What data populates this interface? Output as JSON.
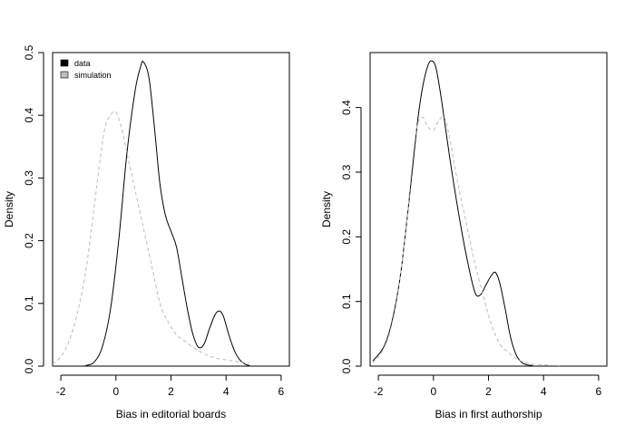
{
  "chart_data": [
    {
      "type": "line",
      "title": "",
      "xlabel": "Bias in editorial boards",
      "ylabel": "Density",
      "xlim": [
        -2.3,
        6.3
      ],
      "ylim": [
        0,
        0.5
      ],
      "xticks": [
        "-2",
        "0",
        "2",
        "4",
        "6"
      ],
      "yticks": [
        "0.0",
        "0.1",
        "0.2",
        "0.3",
        "0.4",
        "0.5"
      ],
      "legend": {
        "position": "top-left",
        "entries": [
          "data",
          "simulation"
        ]
      },
      "series": [
        {
          "name": "data",
          "style": "solid",
          "color": "#000000",
          "x": [
            -1.1,
            -0.8,
            -0.5,
            -0.2,
            0.1,
            0.4,
            0.7,
            0.9,
            1.0,
            1.2,
            1.4,
            1.6,
            1.8,
            2.0,
            2.2,
            2.4,
            2.6,
            2.8,
            3.0,
            3.2,
            3.4,
            3.6,
            3.75,
            3.9,
            4.1,
            4.3,
            4.5,
            4.7,
            4.85
          ],
          "y": [
            0.001,
            0.006,
            0.03,
            0.09,
            0.2,
            0.34,
            0.44,
            0.478,
            0.485,
            0.46,
            0.38,
            0.29,
            0.24,
            0.215,
            0.19,
            0.14,
            0.09,
            0.05,
            0.03,
            0.035,
            0.06,
            0.082,
            0.088,
            0.08,
            0.05,
            0.025,
            0.01,
            0.003,
            0.001
          ]
        },
        {
          "name": "simulation",
          "style": "dashed",
          "color": "#bbbbbb",
          "x": [
            -2.3,
            -2.0,
            -1.7,
            -1.4,
            -1.1,
            -0.8,
            -0.6,
            -0.4,
            -0.2,
            0.0,
            0.2,
            0.4,
            0.6,
            0.8,
            1.0,
            1.3,
            1.6,
            1.9,
            2.2,
            2.5,
            2.8,
            3.1,
            3.4,
            3.7,
            4.0,
            4.3,
            4.6,
            4.85
          ],
          "y": [
            0.003,
            0.015,
            0.04,
            0.085,
            0.15,
            0.25,
            0.32,
            0.38,
            0.4,
            0.405,
            0.38,
            0.34,
            0.3,
            0.26,
            0.22,
            0.16,
            0.1,
            0.07,
            0.05,
            0.04,
            0.03,
            0.022,
            0.016,
            0.012,
            0.01,
            0.008,
            0.006,
            0.005
          ]
        }
      ]
    },
    {
      "type": "line",
      "title": "",
      "xlabel": "Bias in first authorship",
      "ylabel": "Density",
      "xlim": [
        -2.3,
        6.3
      ],
      "ylim": [
        0,
        0.485
      ],
      "xticks": [
        "-2",
        "0",
        "2",
        "4",
        "6"
      ],
      "yticks": [
        "0.0",
        "0.1",
        "0.2",
        "0.3",
        "0.4"
      ],
      "series": [
        {
          "name": "data",
          "style": "solid",
          "color": "#000000",
          "x": [
            -2.2,
            -1.8,
            -1.5,
            -1.2,
            -0.9,
            -0.6,
            -0.4,
            -0.2,
            -0.05,
            0.1,
            0.3,
            0.6,
            0.9,
            1.2,
            1.5,
            1.7,
            1.9,
            2.1,
            2.25,
            2.4,
            2.6,
            2.8,
            3.0,
            3.2,
            3.4,
            3.6
          ],
          "y": [
            0.008,
            0.03,
            0.07,
            0.14,
            0.25,
            0.37,
            0.43,
            0.465,
            0.472,
            0.46,
            0.41,
            0.32,
            0.24,
            0.17,
            0.115,
            0.11,
            0.125,
            0.14,
            0.145,
            0.13,
            0.09,
            0.045,
            0.018,
            0.006,
            0.002,
            0.001
          ]
        },
        {
          "name": "simulation",
          "style": "dashed",
          "color": "#bbbbbb",
          "x": [
            -2.2,
            -1.9,
            -1.6,
            -1.3,
            -1.0,
            -0.8,
            -0.6,
            -0.4,
            -0.2,
            0.0,
            0.2,
            0.4,
            0.6,
            0.9,
            1.2,
            1.5,
            1.8,
            2.1,
            2.4,
            2.7,
            3.0,
            3.3,
            3.6,
            4.0,
            4.4,
            4.8
          ],
          "y": [
            0.005,
            0.02,
            0.05,
            0.11,
            0.21,
            0.3,
            0.37,
            0.385,
            0.37,
            0.365,
            0.38,
            0.385,
            0.35,
            0.28,
            0.22,
            0.16,
            0.11,
            0.065,
            0.035,
            0.022,
            0.012,
            0.006,
            0.003,
            0.002,
            0.001,
            0.001
          ]
        }
      ]
    }
  ]
}
